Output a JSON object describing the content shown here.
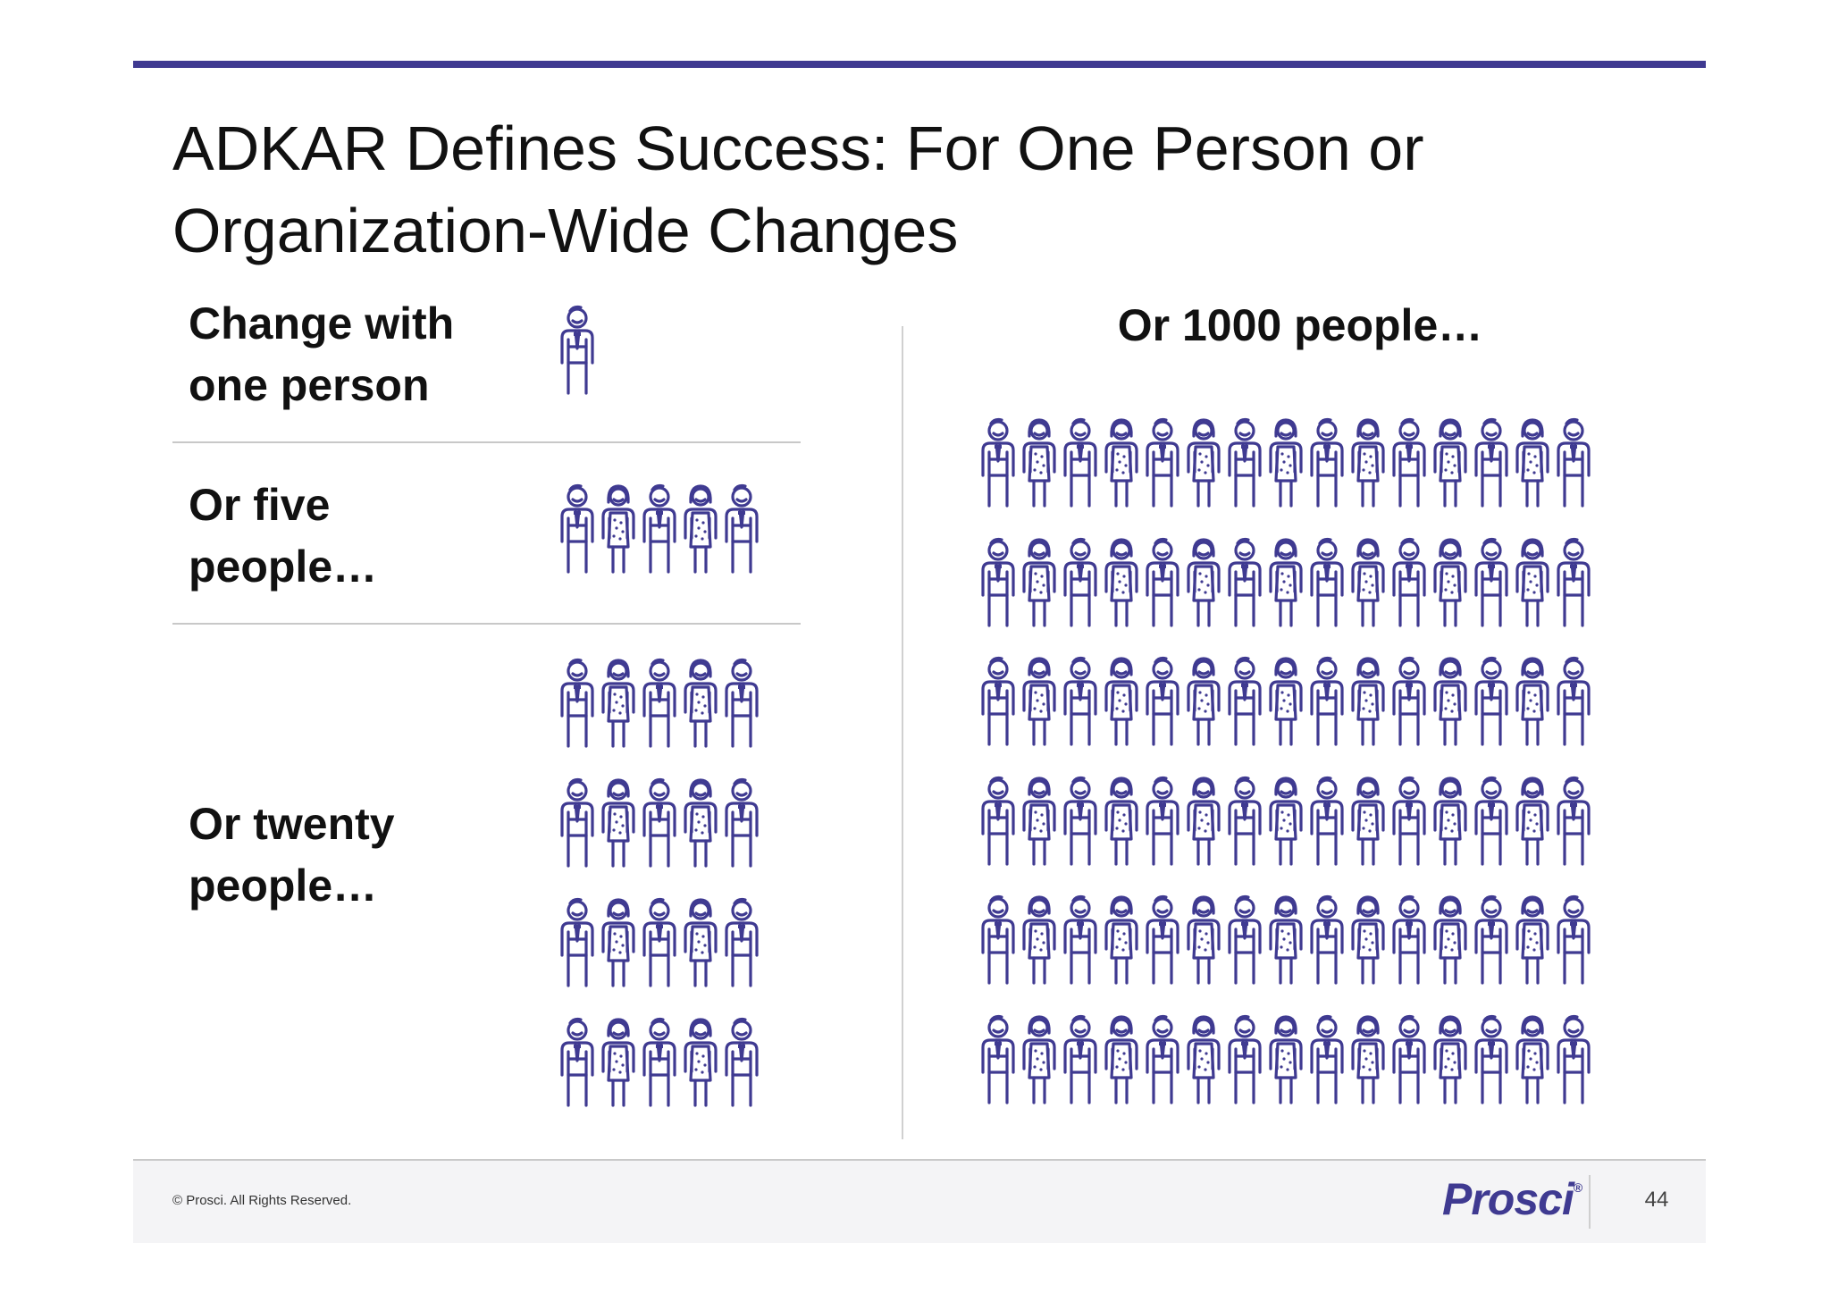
{
  "slide": {
    "title_lines": [
      "ADKAR Defines Success: For One Person or",
      "Organization-Wide Changes"
    ]
  },
  "groups": {
    "one": {
      "label_lines": [
        "Change with",
        "one person"
      ],
      "count": 1,
      "rows": 1,
      "cols": 1
    },
    "five": {
      "label_lines": [
        "Or five",
        "people…"
      ],
      "count": 5,
      "rows": 1,
      "cols": 5
    },
    "twenty": {
      "label_lines": [
        "Or twenty",
        "people…"
      ],
      "count": 20,
      "rows": 4,
      "cols": 5
    },
    "thousand": {
      "label": "Or 1000 people…",
      "count": 90,
      "rows": 6,
      "cols": 15
    }
  },
  "icons": {
    "person": "person-icon",
    "male": "man-with-tie",
    "female": "woman-with-dress"
  },
  "colors": {
    "accent": "#3f3a91",
    "title_text": "#111111",
    "divider": "#c8c8c8"
  },
  "footer": {
    "copyright": "© Prosci. All Rights Reserved.",
    "logo": "Prosci",
    "page_number": "44"
  }
}
